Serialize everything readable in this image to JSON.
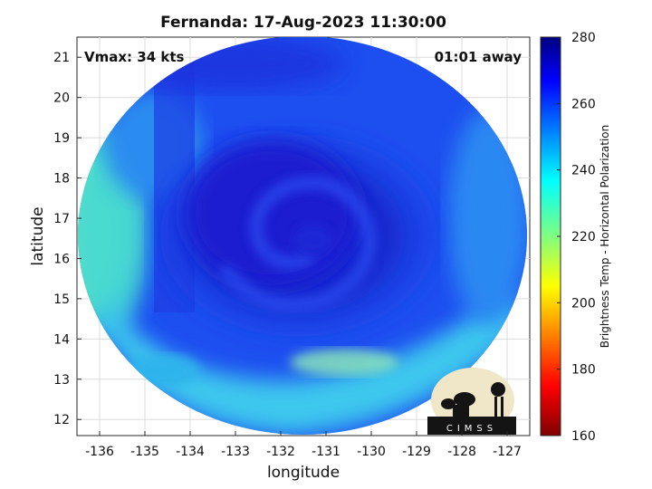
{
  "title": "Fernanda: 17-Aug-2023 11:30:00",
  "vmax_label": "Vmax: 34 kts",
  "time_offset_label": "01:01 away",
  "xlabel": "longitude",
  "ylabel": "latitude",
  "x_ticks": [
    "-136",
    "-135",
    "-134",
    "-133",
    "-132",
    "-131",
    "-130",
    "-129",
    "-128",
    "-127"
  ],
  "y_ticks": [
    "12",
    "13",
    "14",
    "15",
    "16",
    "17",
    "18",
    "19",
    "20",
    "21"
  ],
  "colorbar": {
    "label": "Brightness Temp - Horizontal Polarization",
    "ticks": [
      "280",
      "260",
      "240",
      "220",
      "200",
      "180",
      "160"
    ],
    "range": [
      160,
      280
    ],
    "colormap": "jet"
  },
  "logo_text": "CIMSS",
  "colors": {
    "background": "#ffffff",
    "deep_blue": "#1a1fd8",
    "cyan_band": "#33c8f0",
    "green_edge": "#7ce6a0",
    "logo_bg": "#f0e6c8"
  },
  "chart_data": {
    "type": "heatmap",
    "title": "Fernanda: 17-Aug-2023 11:30:00",
    "xlabel": "longitude",
    "ylabel": "latitude",
    "xlim": [
      -136.5,
      -126.5
    ],
    "ylim": [
      11.6,
      21.5
    ],
    "storm_center": {
      "lon": -131.3,
      "lat": 16.6
    },
    "value_label": "Brightness Temp - Horizontal Polarization",
    "value_range": [
      160,
      280
    ],
    "grid": true
  }
}
